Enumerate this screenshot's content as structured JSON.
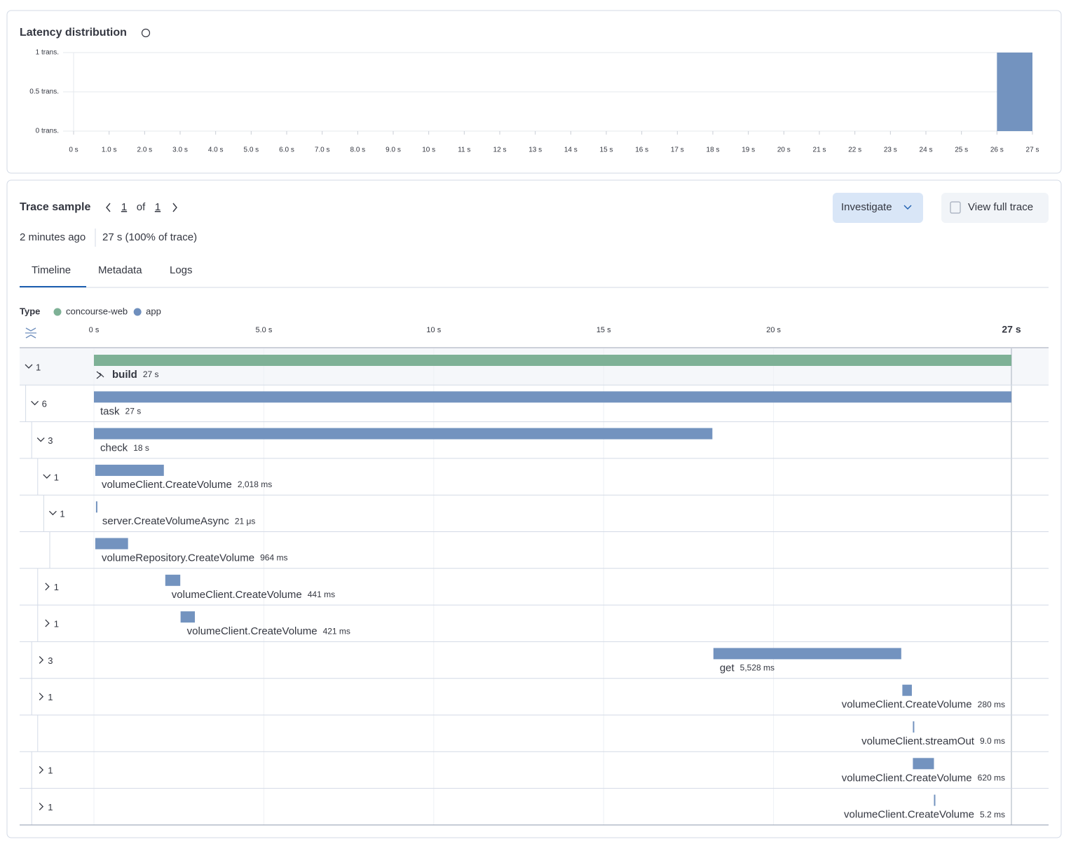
{
  "chart_data": {
    "type": "histogram",
    "title": "Latency distribution",
    "bins": [
      26,
      27
    ],
    "values": [
      1
    ],
    "color": "#7393bf",
    "xlim": [
      0,
      27
    ],
    "ylim": [
      0,
      1
    ],
    "grid": true,
    "xticks": [
      {
        "value": 0,
        "label": "0 s"
      },
      {
        "value": 1,
        "label": "1.0 s"
      },
      {
        "value": 2,
        "label": "2.0 s"
      },
      {
        "value": 3,
        "label": "3.0 s"
      },
      {
        "value": 4,
        "label": "4.0 s"
      },
      {
        "value": 5,
        "label": "5.0 s"
      },
      {
        "value": 6,
        "label": "6.0 s"
      },
      {
        "value": 7,
        "label": "7.0 s"
      },
      {
        "value": 8,
        "label": "8.0 s"
      },
      {
        "value": 9,
        "label": "9.0 s"
      },
      {
        "value": 10,
        "label": "10 s"
      },
      {
        "value": 11,
        "label": "11 s"
      },
      {
        "value": 12,
        "label": "12 s"
      },
      {
        "value": 13,
        "label": "13 s"
      },
      {
        "value": 14,
        "label": "14 s"
      },
      {
        "value": 15,
        "label": "15 s"
      },
      {
        "value": 16,
        "label": "16 s"
      },
      {
        "value": 17,
        "label": "17 s"
      },
      {
        "value": 18,
        "label": "18 s"
      },
      {
        "value": 19,
        "label": "19 s"
      },
      {
        "value": 20,
        "label": "20 s"
      },
      {
        "value": 21,
        "label": "21 s"
      },
      {
        "value": 22,
        "label": "22 s"
      },
      {
        "value": 23,
        "label": "23 s"
      },
      {
        "value": 24,
        "label": "24 s"
      },
      {
        "value": 25,
        "label": "25 s"
      },
      {
        "value": 26,
        "label": "26 s"
      },
      {
        "value": 27,
        "label": "27 s"
      }
    ],
    "yticks": [
      {
        "value": 0,
        "label": "0 trans."
      },
      {
        "value": 0.5,
        "label": "0.5 trans."
      },
      {
        "value": 1,
        "label": "1 trans."
      }
    ]
  },
  "trace_sample": {
    "title": "Trace sample",
    "page": 1,
    "of": "of",
    "total": 1,
    "actions": [
      "Investigate",
      "View full trace"
    ],
    "age": "2 minutes ago",
    "duration": "27 s (100% of trace)",
    "tabs": [
      "Timeline",
      "Metadata",
      "Logs"
    ],
    "active_tab": 0,
    "legend": {
      "title": "Type",
      "items": [
        {
          "name": "concourse-web",
          "color": "#7eb196"
        },
        {
          "name": "app",
          "color": "#6f8fbd"
        }
      ]
    },
    "timeline": {
      "xlim": [
        0,
        27
      ],
      "xticks": [
        {
          "value": 0,
          "label": "0 s"
        },
        {
          "value": 5,
          "label": "5.0 s"
        },
        {
          "value": 10,
          "label": "10 s"
        },
        {
          "value": 15,
          "label": "15 s"
        },
        {
          "value": 20,
          "label": "20 s"
        },
        {
          "value": 27,
          "label": "27 s"
        }
      ]
    },
    "spans": [
      {
        "count": 1,
        "expanded": true,
        "name": "build",
        "duration_label": "27 s",
        "start": 0,
        "duration": 27,
        "color": "#7eb196"
      },
      {
        "count": 6,
        "expanded": true,
        "name": "task",
        "duration_label": "27 s",
        "start": 0,
        "duration": 27,
        "color": "#7393bf"
      },
      {
        "count": 3,
        "expanded": true,
        "name": "check",
        "duration_label": "18 s",
        "start": 0,
        "duration": 18.2,
        "color": "#7393bf"
      },
      {
        "count": 1,
        "expanded": true,
        "name": "volumeClient.CreateVolume",
        "duration_label": "2,018 ms",
        "start": 0.04,
        "duration": 2.018,
        "color": "#7393bf"
      },
      {
        "count": 1,
        "expanded": true,
        "name": "server.CreateVolumeAsync",
        "duration_label": "21 μs",
        "start": 0.06,
        "duration": 2.1e-05,
        "color": "#7393bf"
      },
      {
        "name": "volumeRepository.CreateVolume",
        "duration_label": "964 ms",
        "start": 0.04,
        "duration": 0.964,
        "color": "#7393bf"
      },
      {
        "count": 1,
        "expanded": false,
        "name": "volumeClient.CreateVolume",
        "duration_label": "441 ms",
        "start": 2.1,
        "duration": 0.441,
        "color": "#7393bf"
      },
      {
        "count": 1,
        "expanded": false,
        "name": "volumeClient.CreateVolume",
        "duration_label": "421 ms",
        "start": 2.55,
        "duration": 0.421,
        "color": "#7393bf"
      },
      {
        "count": 3,
        "expanded": false,
        "name": "get",
        "duration_label": "5,528 ms",
        "start": 18.23,
        "duration": 5.528,
        "color": "#7393bf"
      },
      {
        "count": 1,
        "expanded": false,
        "name": "volumeClient.CreateVolume",
        "duration_label": "280 ms",
        "start": 23.79,
        "duration": 0.28,
        "color": "#7393bf"
      },
      {
        "name": "volumeClient.streamOut",
        "duration_label": "9.0 ms",
        "start": 24.1,
        "duration": 0.009,
        "color": "#7393bf"
      },
      {
        "count": 1,
        "expanded": false,
        "name": "volumeClient.CreateVolume",
        "duration_label": "620 ms",
        "start": 24.1,
        "duration": 0.62,
        "color": "#7393bf"
      },
      {
        "count": 1,
        "expanded": false,
        "name": "volumeClient.CreateVolume",
        "duration_label": "5.2 ms",
        "start": 24.72,
        "duration": 0.0052,
        "color": "#7393bf"
      }
    ]
  }
}
